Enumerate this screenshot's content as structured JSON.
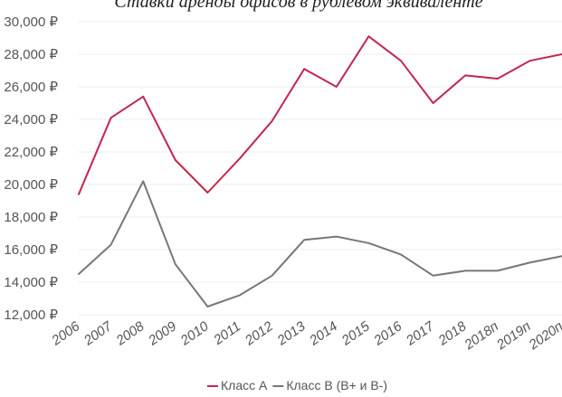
{
  "chart_data": {
    "type": "line",
    "title": "Ставки аренды офисов в рублевом эквиваленте",
    "categories": [
      "2006",
      "2007",
      "2008",
      "2009",
      "2010",
      "2011",
      "2012",
      "2013",
      "2014",
      "2015",
      "2016",
      "2017",
      "2018",
      "2018п",
      "2019п",
      "2020п"
    ],
    "series": [
      {
        "name": "Класс А",
        "color": "#c0284f",
        "values": [
          19400,
          24100,
          25400,
          21500,
          19500,
          21600,
          23900,
          27100,
          26000,
          29100,
          27600,
          25000,
          26700,
          26500,
          27600,
          28000
        ]
      },
      {
        "name": "Класс В (В+ и В-)",
        "color": "#777777",
        "values": [
          14500,
          16300,
          20200,
          15100,
          12500,
          13200,
          14400,
          16600,
          16800,
          16400,
          15700,
          14400,
          14700,
          14700,
          15200,
          15600
        ]
      }
    ],
    "y_ticks": [
      "12,000 ₽",
      "14,000 ₽",
      "16,000 ₽",
      "18,000 ₽",
      "20,000 ₽",
      "22,000 ₽",
      "24,000 ₽",
      "26,000 ₽",
      "28,000 ₽",
      "30,000 ₽"
    ],
    "ylim": [
      12000,
      30000
    ],
    "grid": true,
    "legend": "bottom-center",
    "xlabel": "",
    "ylabel": ""
  }
}
